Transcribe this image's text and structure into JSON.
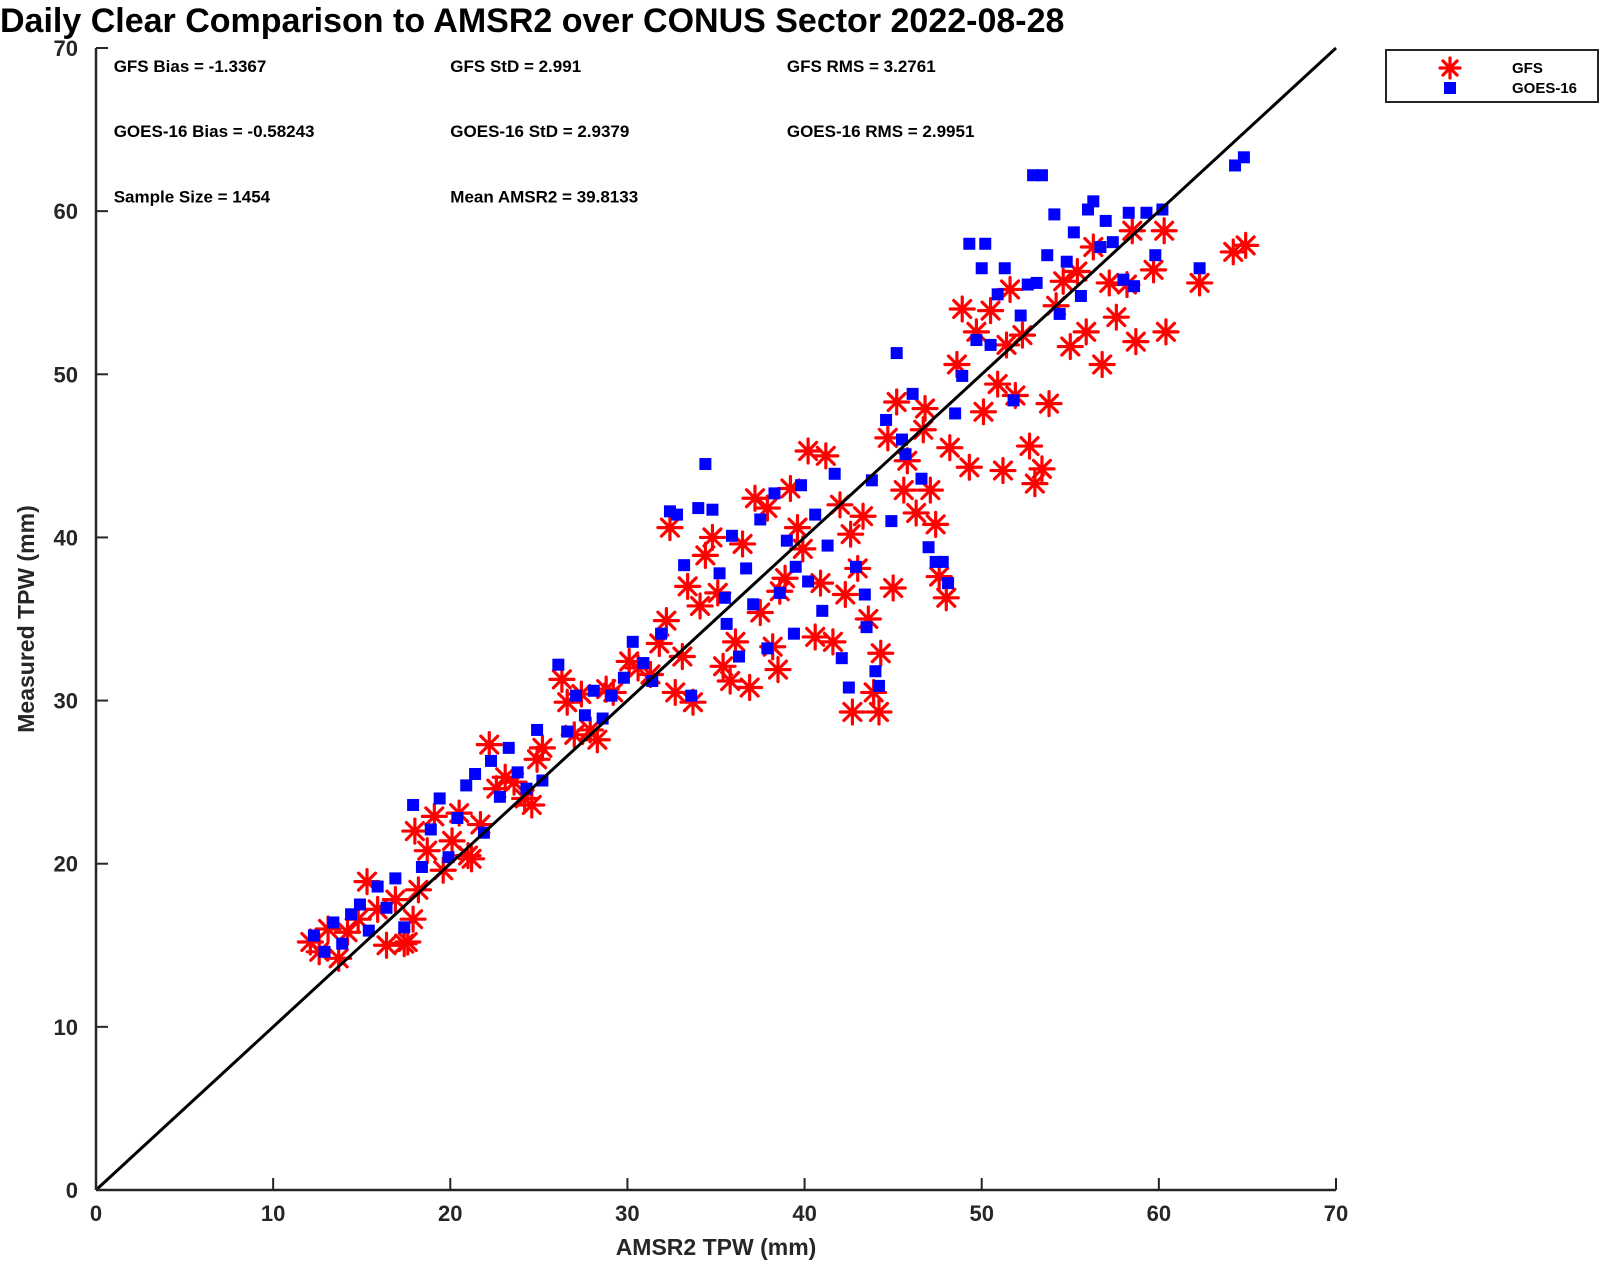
{
  "chart_data": {
    "type": "scatter",
    "title": "Daily Clear Comparison to AMSR2 over CONUS Sector 2022-08-28",
    "xlabel": "AMSR2 TPW (mm)",
    "ylabel": "Measured TPW (mm)",
    "xlim": [
      0,
      70
    ],
    "ylim": [
      0,
      70
    ],
    "xticks": [
      "0",
      "10",
      "20",
      "30",
      "40",
      "50",
      "60",
      "70"
    ],
    "yticks": [
      "0",
      "10",
      "20",
      "30",
      "40",
      "50",
      "60",
      "70"
    ],
    "grid": false,
    "legend_position": "outside top-right",
    "reference_line": {
      "x": [
        0,
        70
      ],
      "y": [
        0,
        70
      ],
      "color": "#000000"
    },
    "annotations": [
      {
        "text": "GFS Bias = -1.3367",
        "x": 1,
        "y": 68.9
      },
      {
        "text": "GFS StD = 2.991",
        "x": 20,
        "y": 68.9
      },
      {
        "text": "GFS RMS = 3.2761",
        "x": 39,
        "y": 68.9
      },
      {
        "text": "GOES-16 Bias = -0.58243",
        "x": 1,
        "y": 64.9
      },
      {
        "text": "GOES-16 StD = 2.9379",
        "x": 20,
        "y": 64.9
      },
      {
        "text": "GOES-16 RMS = 2.9951",
        "x": 39,
        "y": 64.9
      },
      {
        "text": "Sample Size = 1454",
        "x": 1,
        "y": 60.9
      },
      {
        "text": "Mean AMSR2 = 39.8133",
        "x": 20,
        "y": 60.9
      }
    ],
    "series": [
      {
        "name": "GFS",
        "marker": "asterisk",
        "color": "#ff0000",
        "points": [
          [
            12.1,
            15.2
          ],
          [
            12.6,
            14.6
          ],
          [
            13.1,
            16.0
          ],
          [
            13.7,
            14.2
          ],
          [
            14.2,
            15.8
          ],
          [
            14.8,
            16.6
          ],
          [
            15.3,
            18.9
          ],
          [
            15.9,
            17.2
          ],
          [
            16.4,
            15.0
          ],
          [
            16.9,
            17.8
          ],
          [
            17.4,
            15.1
          ],
          [
            17.6,
            15.2
          ],
          [
            17.9,
            16.6
          ],
          [
            18.2,
            18.4
          ],
          [
            18.0,
            22.0
          ],
          [
            18.7,
            20.8
          ],
          [
            19.1,
            22.9
          ],
          [
            19.6,
            19.6
          ],
          [
            20.1,
            21.4
          ],
          [
            20.5,
            23.1
          ],
          [
            21.0,
            20.5
          ],
          [
            21.2,
            20.3
          ],
          [
            21.7,
            22.4
          ],
          [
            22.2,
            27.3
          ],
          [
            22.6,
            24.6
          ],
          [
            23.1,
            25.3
          ],
          [
            23.6,
            25.0
          ],
          [
            24.2,
            24.0
          ],
          [
            24.6,
            23.6
          ],
          [
            24.9,
            26.4
          ],
          [
            25.2,
            27.1
          ],
          [
            26.3,
            31.3
          ],
          [
            26.6,
            29.9
          ],
          [
            27.0,
            27.9
          ],
          [
            27.4,
            30.4
          ],
          [
            27.9,
            28.2
          ],
          [
            28.3,
            27.6
          ],
          [
            28.8,
            30.7
          ],
          [
            29.2,
            30.5
          ],
          [
            30.1,
            32.4
          ],
          [
            30.6,
            32.0
          ],
          [
            31.3,
            31.6
          ],
          [
            31.8,
            33.5
          ],
          [
            32.2,
            34.9
          ],
          [
            32.4,
            40.6
          ],
          [
            32.7,
            30.5
          ],
          [
            33.1,
            32.7
          ],
          [
            33.4,
            37.0
          ],
          [
            33.7,
            29.9
          ],
          [
            34.1,
            35.8
          ],
          [
            34.4,
            38.9
          ],
          [
            34.8,
            40.0
          ],
          [
            35.1,
            36.6
          ],
          [
            35.4,
            32.1
          ],
          [
            35.8,
            31.2
          ],
          [
            36.1,
            33.6
          ],
          [
            36.5,
            39.6
          ],
          [
            36.9,
            30.8
          ],
          [
            37.2,
            42.4
          ],
          [
            37.5,
            35.4
          ],
          [
            37.9,
            41.8
          ],
          [
            38.2,
            33.3
          ],
          [
            38.5,
            31.9
          ],
          [
            38.9,
            37.5
          ],
          [
            39.2,
            43.0
          ],
          [
            39.6,
            40.6
          ],
          [
            39.9,
            39.3
          ],
          [
            40.2,
            45.3
          ],
          [
            40.6,
            33.9
          ],
          [
            40.9,
            37.2
          ],
          [
            41.2,
            45.0
          ],
          [
            41.6,
            33.6
          ],
          [
            42.0,
            42.0
          ],
          [
            42.3,
            36.5
          ],
          [
            42.6,
            40.2
          ],
          [
            42.7,
            29.3
          ],
          [
            43.0,
            38.1
          ],
          [
            43.3,
            41.3
          ],
          [
            43.6,
            35.0
          ],
          [
            43.9,
            30.5
          ],
          [
            44.2,
            29.3
          ],
          [
            44.3,
            32.9
          ],
          [
            44.7,
            46.1
          ],
          [
            45.0,
            36.9
          ],
          [
            45.2,
            48.3
          ],
          [
            45.8,
            44.7
          ],
          [
            46.3,
            41.5
          ],
          [
            46.8,
            47.9
          ],
          [
            47.1,
            42.9
          ],
          [
            47.4,
            40.8
          ],
          [
            47.6,
            37.6
          ],
          [
            48.0,
            36.3
          ],
          [
            48.2,
            45.5
          ],
          [
            48.6,
            50.6
          ],
          [
            48.9,
            54.0
          ],
          [
            49.3,
            44.3
          ],
          [
            49.7,
            52.6
          ],
          [
            50.1,
            47.7
          ],
          [
            50.5,
            53.9
          ],
          [
            50.9,
            49.4
          ],
          [
            51.2,
            44.1
          ],
          [
            51.6,
            55.2
          ],
          [
            51.9,
            48.7
          ],
          [
            52.3,
            52.4
          ],
          [
            52.7,
            45.6
          ],
          [
            53.0,
            43.3
          ],
          [
            53.4,
            44.2
          ],
          [
            53.8,
            48.2
          ],
          [
            54.2,
            54.2
          ],
          [
            54.6,
            55.7
          ],
          [
            55.0,
            51.7
          ],
          [
            55.4,
            56.3
          ],
          [
            55.9,
            52.6
          ],
          [
            56.3,
            57.8
          ],
          [
            56.8,
            50.6
          ],
          [
            57.2,
            55.6
          ],
          [
            57.6,
            53.5
          ],
          [
            58.2,
            55.5
          ],
          [
            58.5,
            58.8
          ],
          [
            58.7,
            52.0
          ],
          [
            59.7,
            56.4
          ],
          [
            60.3,
            58.8
          ],
          [
            60.4,
            52.6
          ],
          [
            62.3,
            55.6
          ],
          [
            64.2,
            57.5
          ],
          [
            64.9,
            57.9
          ],
          [
            45.6,
            42.9
          ],
          [
            46.7,
            46.6
          ],
          [
            51.4,
            51.8
          ],
          [
            38.6,
            36.7
          ]
        ]
      },
      {
        "name": "GOES-16",
        "marker": "square",
        "color": "#0000ff",
        "points": [
          [
            12.3,
            15.6
          ],
          [
            12.9,
            14.6
          ],
          [
            13.4,
            16.4
          ],
          [
            13.9,
            15.1
          ],
          [
            14.4,
            16.9
          ],
          [
            14.9,
            17.5
          ],
          [
            15.4,
            15.9
          ],
          [
            15.9,
            18.6
          ],
          [
            16.4,
            17.3
          ],
          [
            16.9,
            19.1
          ],
          [
            17.4,
            16.1
          ],
          [
            17.9,
            23.6
          ],
          [
            18.4,
            19.8
          ],
          [
            18.9,
            22.1
          ],
          [
            19.4,
            24.0
          ],
          [
            19.9,
            20.4
          ],
          [
            20.4,
            22.8
          ],
          [
            20.9,
            24.8
          ],
          [
            21.4,
            25.5
          ],
          [
            21.9,
            21.9
          ],
          [
            22.3,
            26.3
          ],
          [
            22.8,
            24.1
          ],
          [
            23.3,
            27.1
          ],
          [
            23.8,
            25.6
          ],
          [
            24.3,
            24.6
          ],
          [
            24.9,
            28.2
          ],
          [
            25.2,
            25.1
          ],
          [
            26.1,
            32.2
          ],
          [
            26.6,
            28.1
          ],
          [
            27.1,
            30.3
          ],
          [
            27.6,
            29.1
          ],
          [
            28.1,
            30.6
          ],
          [
            28.6,
            28.9
          ],
          [
            29.1,
            30.3
          ],
          [
            29.8,
            31.4
          ],
          [
            30.3,
            33.6
          ],
          [
            30.9,
            32.3
          ],
          [
            31.4,
            31.2
          ],
          [
            31.9,
            34.1
          ],
          [
            32.4,
            41.6
          ],
          [
            32.8,
            41.4
          ],
          [
            33.2,
            38.3
          ],
          [
            33.6,
            30.3
          ],
          [
            34.0,
            41.8
          ],
          [
            34.4,
            44.5
          ],
          [
            34.8,
            41.7
          ],
          [
            35.2,
            37.8
          ],
          [
            35.6,
            34.7
          ],
          [
            35.9,
            40.1
          ],
          [
            36.3,
            32.7
          ],
          [
            36.7,
            38.1
          ],
          [
            37.1,
            35.9
          ],
          [
            37.5,
            41.1
          ],
          [
            37.9,
            33.2
          ],
          [
            38.3,
            42.7
          ],
          [
            38.6,
            36.6
          ],
          [
            39.0,
            39.8
          ],
          [
            39.4,
            34.1
          ],
          [
            39.8,
            43.2
          ],
          [
            40.2,
            37.3
          ],
          [
            40.6,
            41.4
          ],
          [
            41.0,
            35.5
          ],
          [
            41.3,
            39.5
          ],
          [
            41.7,
            43.9
          ],
          [
            42.1,
            32.6
          ],
          [
            42.5,
            30.8
          ],
          [
            42.9,
            38.2
          ],
          [
            43.4,
            36.5
          ],
          [
            43.8,
            43.5
          ],
          [
            44.0,
            31.8
          ],
          [
            44.2,
            30.9
          ],
          [
            44.6,
            47.2
          ],
          [
            44.9,
            41.0
          ],
          [
            45.2,
            51.3
          ],
          [
            45.7,
            45.1
          ],
          [
            46.1,
            48.8
          ],
          [
            46.6,
            43.6
          ],
          [
            47.0,
            39.4
          ],
          [
            47.4,
            38.5
          ],
          [
            47.8,
            38.5
          ],
          [
            48.1,
            37.2
          ],
          [
            48.5,
            47.6
          ],
          [
            48.9,
            49.9
          ],
          [
            49.3,
            58.0
          ],
          [
            49.7,
            52.1
          ],
          [
            50.0,
            56.5
          ],
          [
            50.2,
            58.0
          ],
          [
            50.5,
            51.8
          ],
          [
            50.9,
            54.9
          ],
          [
            51.3,
            56.5
          ],
          [
            51.8,
            48.4
          ],
          [
            52.2,
            53.6
          ],
          [
            52.6,
            55.5
          ],
          [
            52.9,
            62.2
          ],
          [
            53.1,
            55.6
          ],
          [
            53.4,
            62.2
          ],
          [
            53.7,
            57.3
          ],
          [
            54.1,
            59.8
          ],
          [
            54.4,
            53.7
          ],
          [
            54.8,
            56.9
          ],
          [
            55.2,
            58.7
          ],
          [
            55.6,
            54.8
          ],
          [
            56.0,
            60.1
          ],
          [
            56.3,
            60.6
          ],
          [
            56.7,
            57.8
          ],
          [
            57.0,
            59.4
          ],
          [
            57.4,
            58.1
          ],
          [
            58.0,
            55.8
          ],
          [
            58.3,
            59.9
          ],
          [
            58.6,
            55.4
          ],
          [
            59.3,
            59.9
          ],
          [
            59.8,
            57.3
          ],
          [
            60.2,
            60.1
          ],
          [
            62.3,
            56.5
          ],
          [
            64.3,
            62.8
          ],
          [
            64.8,
            63.3
          ],
          [
            43.5,
            34.5
          ],
          [
            39.5,
            38.2
          ],
          [
            45.5,
            46.0
          ],
          [
            35.5,
            36.3
          ]
        ]
      }
    ]
  }
}
